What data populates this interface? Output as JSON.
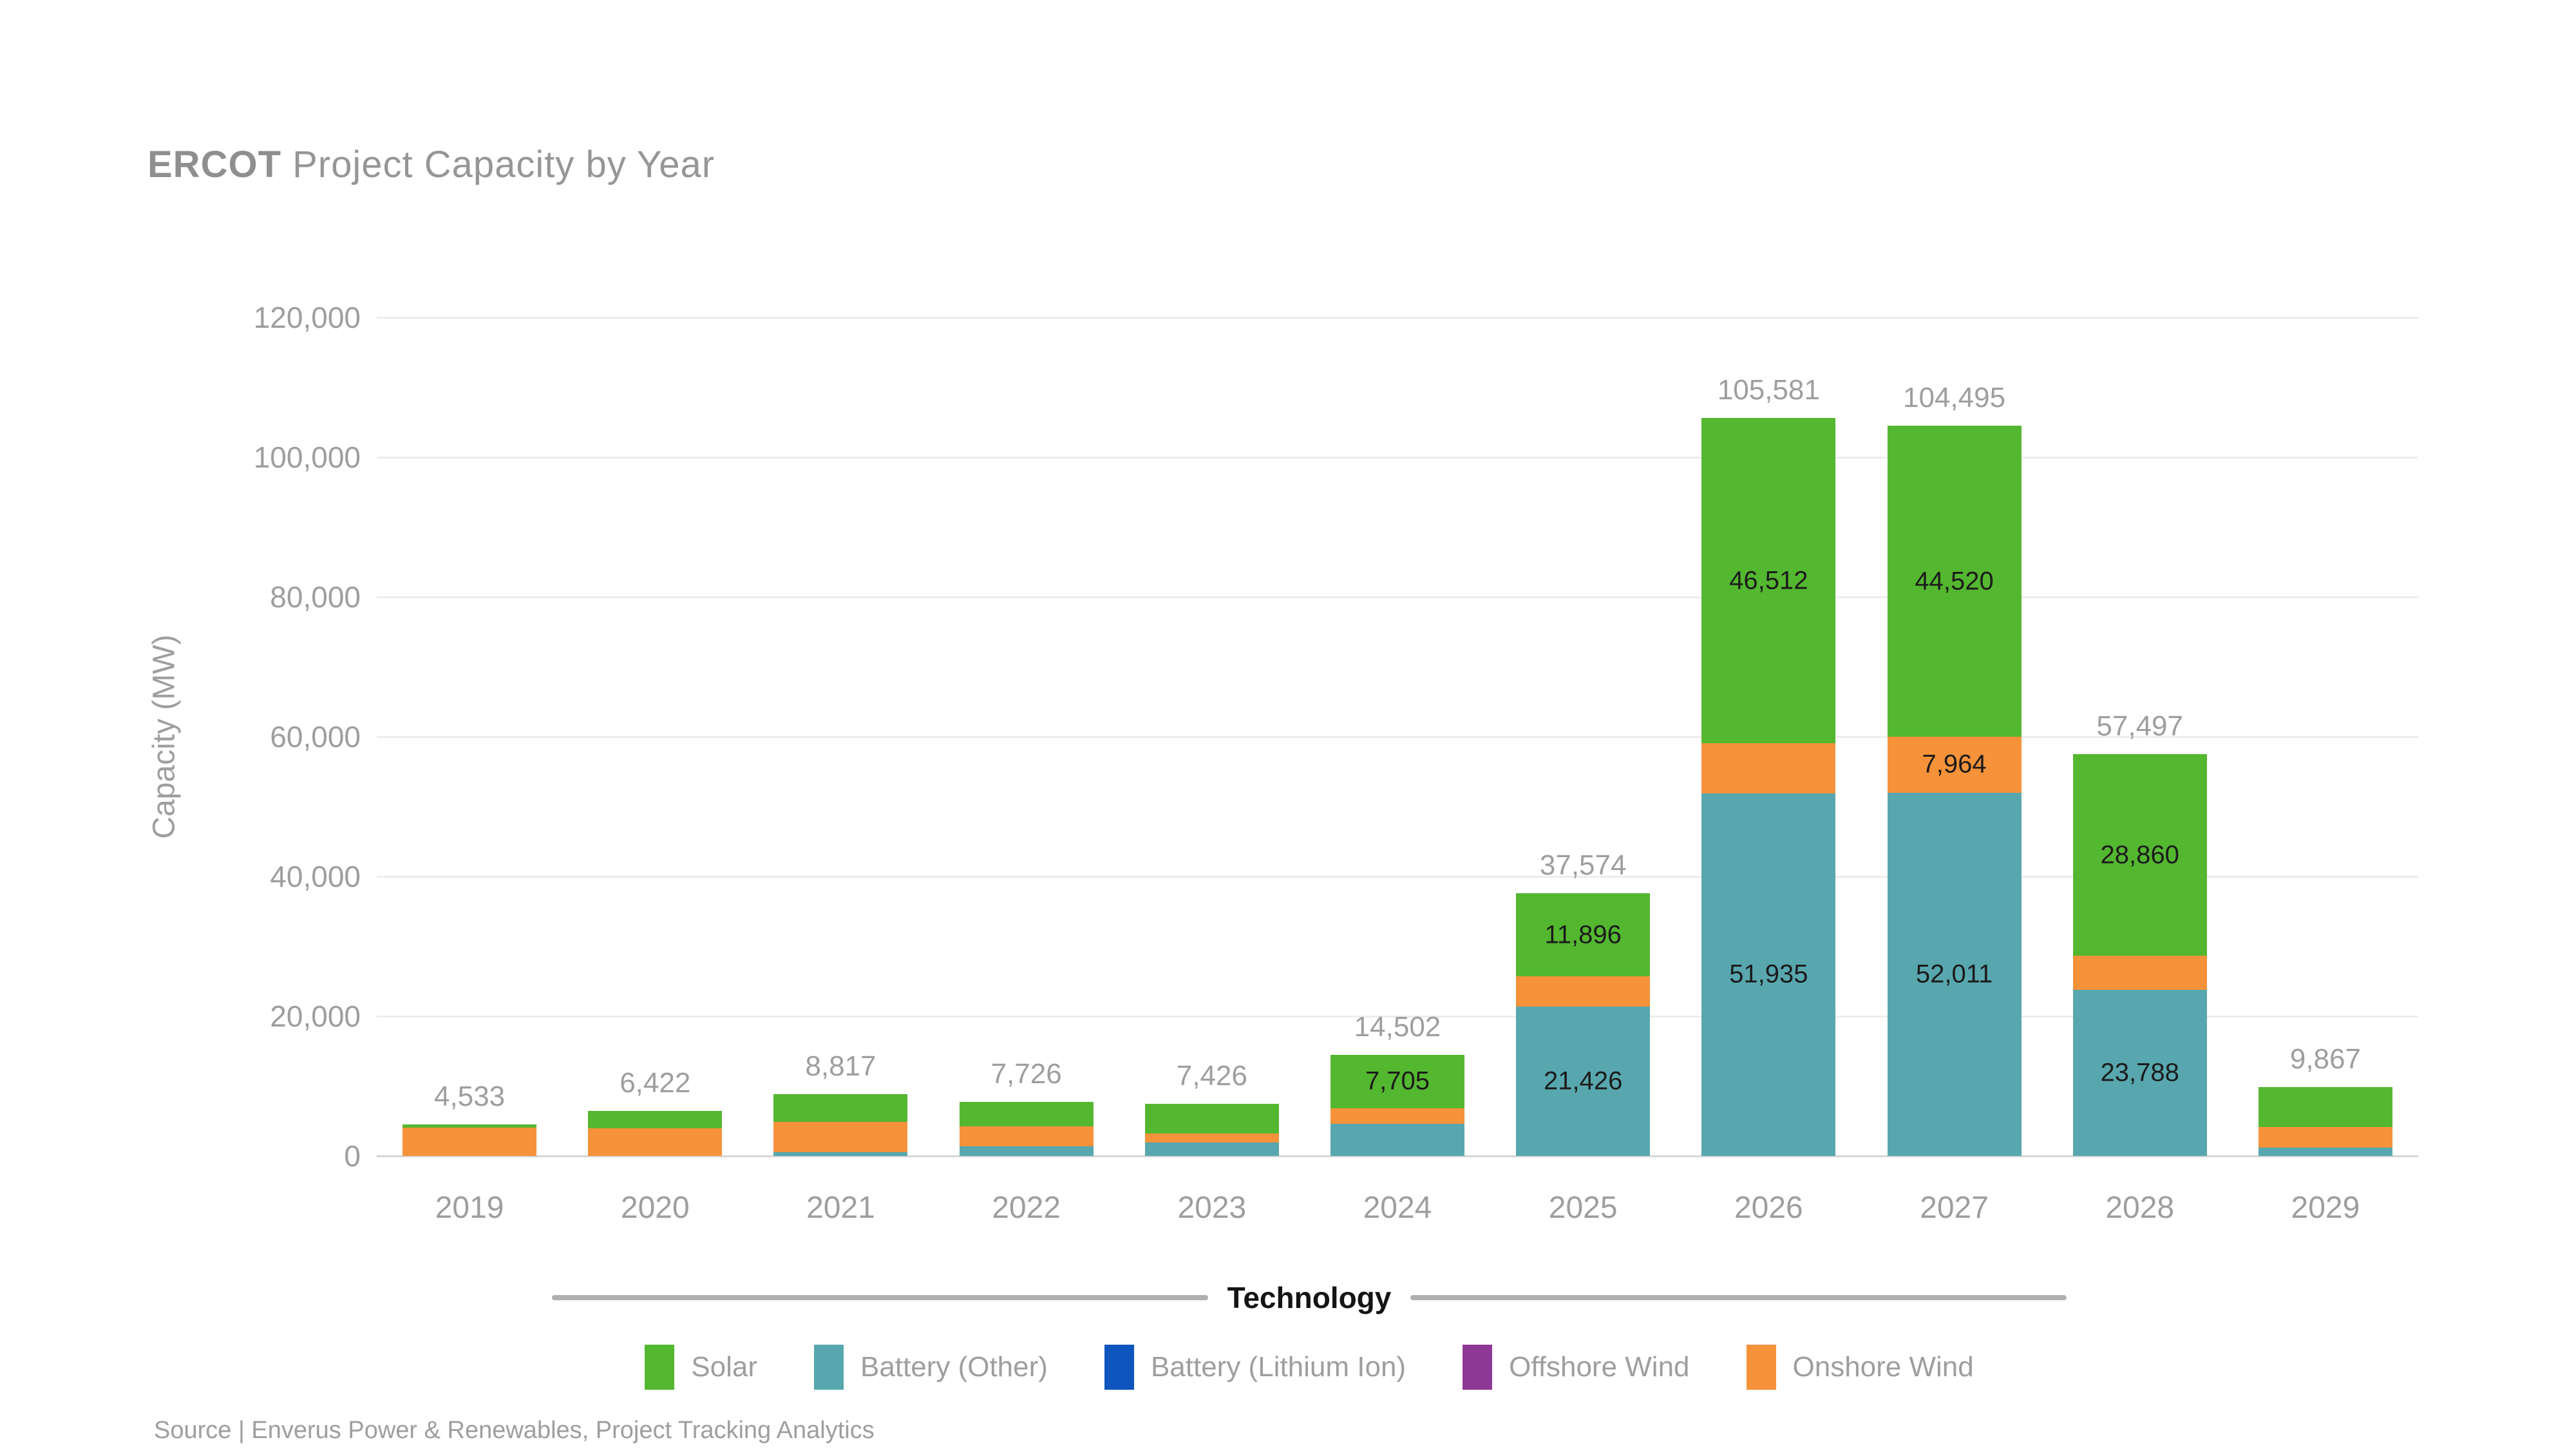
{
  "header": {
    "title_bold": "ERCOT",
    "title_rest": " Project Capacity by Year"
  },
  "axes": {
    "y_label": "Capacity (MW)",
    "y_tick_labels_top_down": [
      "120,000",
      "100,000",
      "80,000",
      "60,000",
      "40,000",
      "20,000",
      "0"
    ],
    "x_tick_labels": [
      "2019",
      "2020",
      "2021",
      "2022",
      "2023",
      "2024",
      "2025",
      "2026",
      "2027",
      "2028",
      "2029"
    ]
  },
  "legend": {
    "group_label": "Technology",
    "items": [
      {
        "label": "Solar",
        "color": "#54B730"
      },
      {
        "label": "Battery (Other)",
        "color": "#58A7AE"
      },
      {
        "label": "Battery (Lithium Ion)",
        "color": "#0E55BE"
      },
      {
        "label": "Offshore Wind",
        "color": "#8F3996"
      },
      {
        "label": "Onshore Wind",
        "color": "#F5923A"
      }
    ]
  },
  "source": "Source | Enverus Power & Renewables, Project Tracking Analytics",
  "colors": {
    "solar": "#54B730",
    "battery_other": "#58A7AE",
    "battery_lithium": "#0E55BE",
    "offshore_wind": "#8F3996",
    "onshore_wind": "#F5923A",
    "gridline": "#EDEDED",
    "axis_baseline": "#D6D6D6",
    "muted_text": "#9E9E9E",
    "segment_label_text": "#1B1B1B"
  },
  "chart_data": {
    "type": "bar",
    "stacked": true,
    "title": "ERCOT Project Capacity by Year",
    "ylabel": "Capacity (MW)",
    "ylim": [
      0,
      120000
    ],
    "ytick_step": 20000,
    "grid": "horizontal",
    "legend_position": "bottom",
    "categories": [
      2019,
      2020,
      2021,
      2022,
      2023,
      2024,
      2025,
      2026,
      2027,
      2028,
      2029
    ],
    "totals": [
      4533,
      6422,
      8817,
      7726,
      7426,
      14502,
      37574,
      105581,
      104495,
      57497,
      9867
    ],
    "stack_bottom_to_top": [
      "Battery (Other)",
      "Battery (Lithium Ion)",
      "Offshore Wind",
      "Onshore Wind",
      "Solar"
    ],
    "series": [
      {
        "name": "Solar",
        "color": "#54B730",
        "values": [
          472,
          2420,
          3898,
          3454,
          4209,
          7705,
          11896,
          46512,
          44520,
          28860,
          5717
        ],
        "value_labels_shown_for_years": [
          2024,
          2025,
          2026,
          2027,
          2028
        ]
      },
      {
        "name": "Battery (Other)",
        "color": "#58A7AE",
        "values": [
          0,
          0,
          557,
          1363,
          1955,
          4597,
          21426,
          51935,
          52011,
          23788,
          1200
        ],
        "value_labels_shown_for_years": [
          2025,
          2026,
          2027,
          2028
        ]
      },
      {
        "name": "Battery (Lithium Ion)",
        "color": "#0E55BE",
        "values": [
          0,
          0,
          0,
          0,
          0,
          0,
          0,
          0,
          0,
          0,
          0
        ],
        "value_labels_shown_for_years": []
      },
      {
        "name": "Offshore Wind",
        "color": "#8F3996",
        "values": [
          0,
          0,
          0,
          0,
          0,
          0,
          0,
          0,
          0,
          0,
          0
        ],
        "value_labels_shown_for_years": []
      },
      {
        "name": "Onshore Wind",
        "color": "#F5923A",
        "values": [
          4061,
          4002,
          4362,
          2909,
          1262,
          2200,
          4252,
          7134,
          7964,
          4849,
          2950
        ],
        "value_labels_shown_for_years": [
          2027
        ]
      }
    ]
  }
}
